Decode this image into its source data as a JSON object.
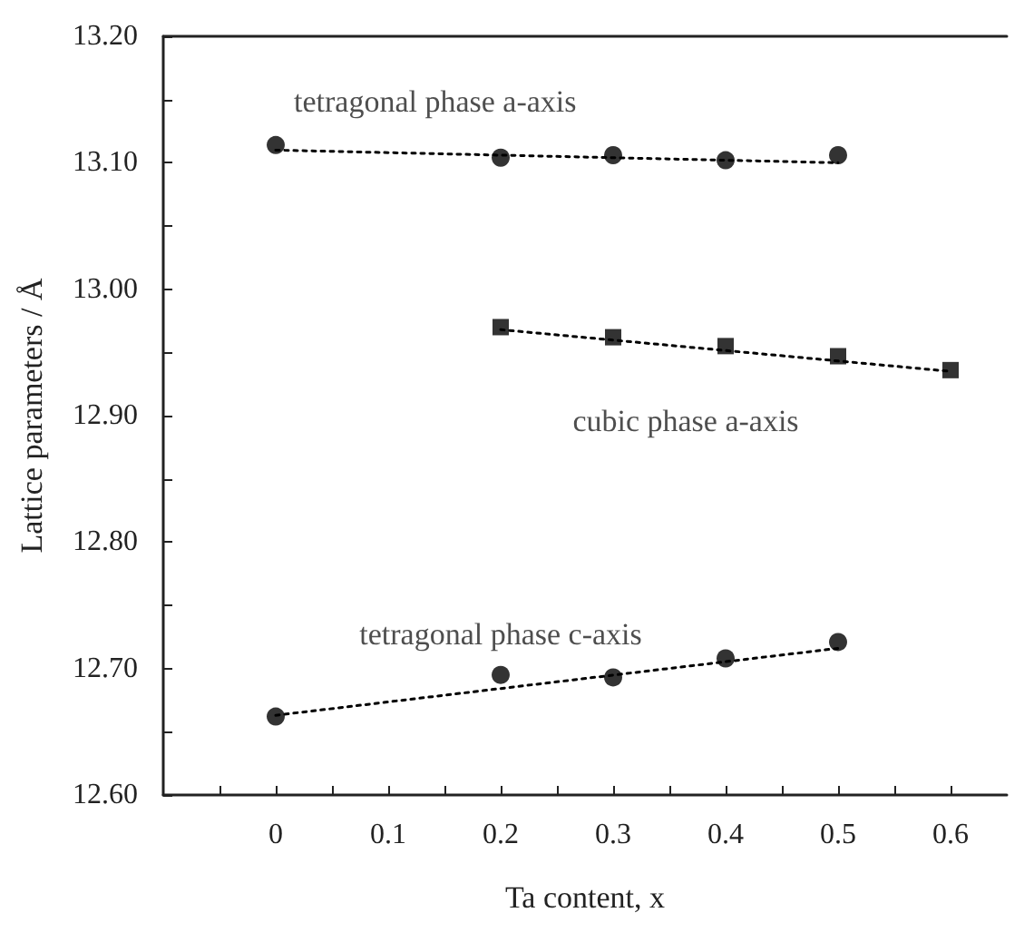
{
  "chart_data": {
    "type": "scatter",
    "xlabel": "Ta content, x",
    "ylabel": "Lattice parameters / Å",
    "xlim": [
      -0.1,
      0.65
    ],
    "xticks": [
      {
        "value": -0.05,
        "label": null
      },
      0,
      {
        "value": 0.05,
        "label": null
      },
      0.1,
      {
        "value": 0.15,
        "label": null
      },
      0.2,
      {
        "value": 0.25,
        "label": null
      },
      0.3,
      {
        "value": 0.35,
        "label": null
      },
      0.4,
      {
        "value": 0.45,
        "label": null
      },
      0.5,
      {
        "value": 0.55,
        "label": null
      },
      0.6
    ],
    "ylim": [
      12.6,
      13.2
    ],
    "yticks": [
      {
        "value": 12.6,
        "label": "12.60"
      },
      {
        "value": 12.65,
        "label": null
      },
      {
        "value": 12.7,
        "label": "12.70"
      },
      {
        "value": 12.75,
        "label": null
      },
      {
        "value": 12.8,
        "label": "12.80"
      },
      {
        "value": 12.85,
        "label": null
      },
      {
        "value": 12.9,
        "label": "12.90"
      },
      {
        "value": 12.95,
        "label": null
      },
      {
        "value": 13.0,
        "label": "13.00"
      },
      {
        "value": 13.05,
        "label": null
      },
      {
        "value": 13.1,
        "label": "13.10"
      },
      {
        "value": 13.15,
        "label": null
      },
      {
        "value": 13.2,
        "label": "13.20"
      }
    ],
    "grid": false,
    "legend": false,
    "series": [
      {
        "name": "tetragonal phase a-axis",
        "marker": "circle",
        "color": "#000000",
        "x": [
          0,
          0.2,
          0.3,
          0.4,
          0.5
        ],
        "values": [
          13.114,
          13.104,
          13.106,
          13.102,
          13.106
        ]
      },
      {
        "name": "cubic phase a-axis",
        "marker": "square",
        "color": "#000000",
        "x": [
          0.2,
          0.3,
          0.4,
          0.5,
          0.6
        ],
        "values": [
          12.97,
          12.962,
          12.955,
          12.947,
          12.936
        ]
      },
      {
        "name": "tetragonal phase c-axis",
        "marker": "circle",
        "color": "#000000",
        "x": [
          0,
          0.2,
          0.3,
          0.4,
          0.5
        ],
        "values": [
          12.662,
          12.695,
          12.693,
          12.708,
          12.721
        ]
      },
      {
        "type": "line",
        "marker": "none",
        "line_style": "dotted",
        "color": "#000000",
        "x": [
          0,
          0.5
        ],
        "values": [
          13.11,
          13.1
        ]
      },
      {
        "type": "line",
        "marker": "none",
        "line_style": "dotted",
        "color": "#000000",
        "x": [
          0.2,
          0.6
        ],
        "values": [
          12.968,
          12.935
        ]
      },
      {
        "type": "line",
        "marker": "none",
        "line_style": "dotted",
        "color": "#000000",
        "x": [
          0,
          0.5
        ],
        "values": [
          12.663,
          12.716
        ]
      }
    ]
  }
}
